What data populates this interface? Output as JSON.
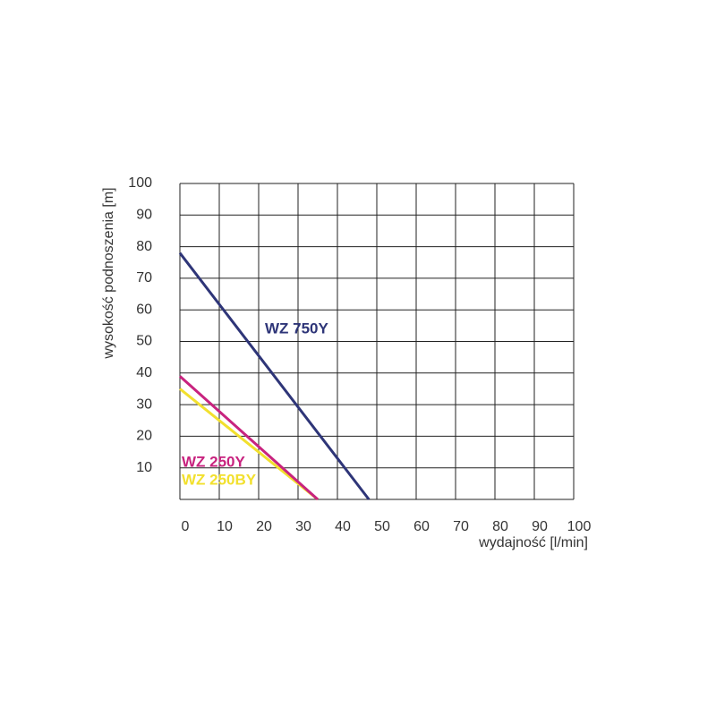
{
  "chart_data": {
    "type": "line",
    "x_label": "wydajność [l/min]",
    "y_label": "wysokość podnoszenia [m]",
    "xlim": [
      0,
      100
    ],
    "xticks": [
      0,
      10,
      20,
      30,
      40,
      50,
      60,
      70,
      80,
      90,
      100
    ],
    "ylim": [
      0,
      100
    ],
    "yticks": [
      10,
      20,
      30,
      40,
      50,
      60,
      70,
      80,
      90,
      100
    ],
    "grid": true,
    "series": [
      {
        "name": "WZ 750Y",
        "color": "#2e3578",
        "x": [
          0,
          48
        ],
        "values": [
          78,
          0
        ]
      },
      {
        "name": "WZ 250Y",
        "color": "#c8237f",
        "x": [
          0,
          35
        ],
        "values": [
          39,
          0
        ]
      },
      {
        "name": "WZ 250BY",
        "color": "#f2e02e",
        "x": [
          0,
          35
        ],
        "values": [
          35,
          0
        ]
      }
    ]
  }
}
